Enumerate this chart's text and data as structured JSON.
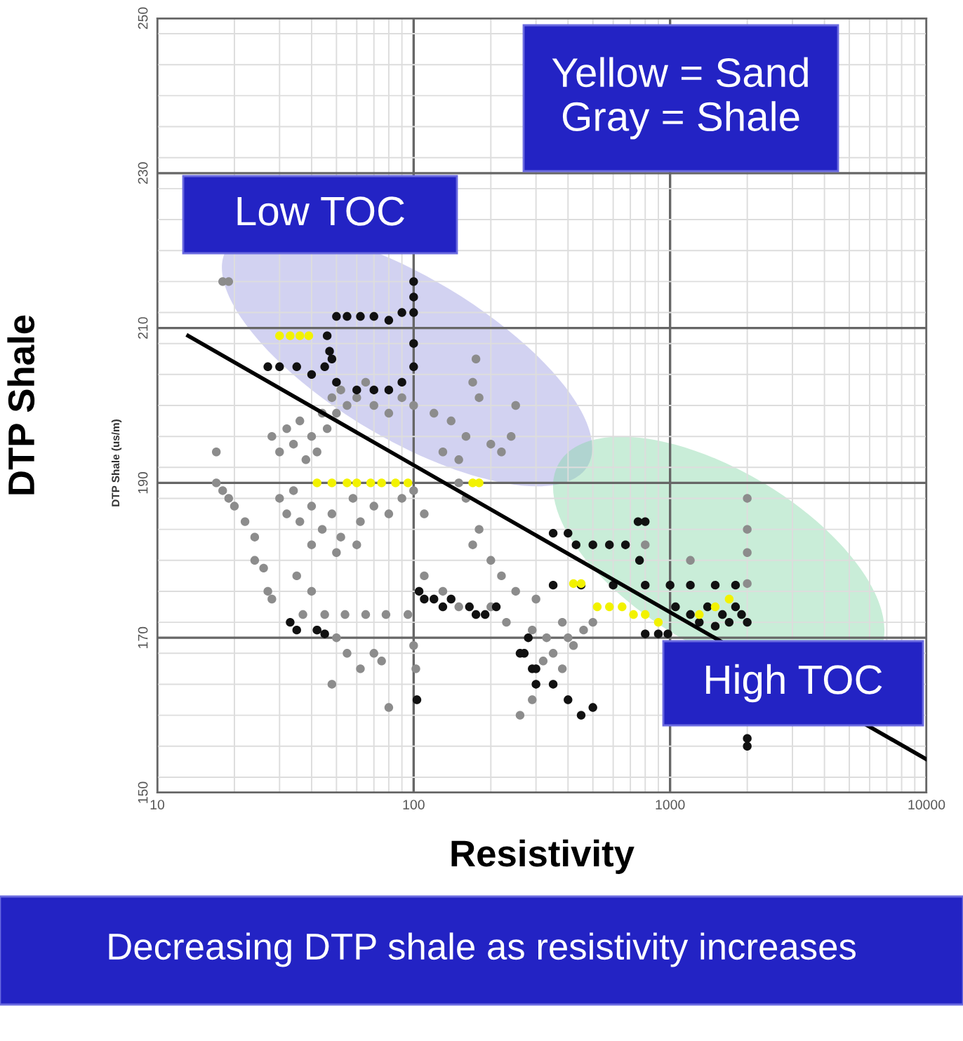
{
  "chart_data": {
    "type": "scatter",
    "xlabel": "Resistivity",
    "ylabel": "DTP Shale",
    "log": "x",
    "grid": true,
    "marker": "circle",
    "xlim": [
      10,
      10000
    ],
    "xticks": [
      10,
      100,
      1000,
      10000
    ],
    "ylim": [
      150,
      250
    ],
    "yticks": [
      150,
      170,
      190,
      210,
      230,
      250
    ],
    "annotations": [
      "Yellow = Sand\nGray = Shale",
      "Low TOC",
      "High TOC",
      "DTP Shale (us/m)",
      "Decreasing DTP shale as resistivity increases"
    ],
    "series": [
      {
        "color": "#8c8c8c",
        "x": [
          18,
          19,
          17,
          17,
          18,
          19,
          20,
          22,
          24,
          24,
          26,
          27,
          28,
          28,
          30,
          32,
          34,
          36,
          38,
          40,
          42,
          44,
          46,
          48,
          50,
          52,
          55,
          60,
          65,
          70,
          80,
          90,
          100,
          120,
          140,
          160,
          170,
          175,
          180,
          200,
          220,
          240,
          250,
          150,
          130,
          30,
          32,
          34,
          36,
          40,
          44,
          48,
          52,
          58,
          62,
          70,
          80,
          90,
          100,
          110,
          60,
          50,
          40,
          35,
          37,
          45,
          54,
          65,
          78,
          95,
          40,
          42,
          50,
          55,
          62,
          70,
          75,
          48,
          80,
          100,
          102,
          150,
          160,
          180,
          200,
          220,
          250,
          300,
          170,
          110,
          130,
          150,
          200,
          230,
          290,
          330,
          380,
          420,
          460,
          500,
          350,
          400,
          380,
          320,
          290,
          2000,
          2000,
          2000,
          2000,
          1200,
          800,
          260
        ],
        "values": [
          216,
          216,
          194,
          190,
          189,
          188,
          187,
          185,
          183,
          180,
          179,
          176,
          175,
          196,
          194,
          197,
          195,
          198,
          193,
          196,
          194,
          199,
          197,
          201,
          199,
          202,
          200,
          201,
          203,
          200,
          199,
          201,
          200,
          199,
          198,
          196,
          203,
          206,
          201,
          195,
          194,
          196,
          200,
          193,
          194,
          188,
          186,
          189,
          185,
          187,
          184,
          186,
          183,
          188,
          185,
          187,
          186,
          188,
          189,
          186,
          182,
          181,
          182,
          178,
          173,
          173,
          173,
          173,
          173,
          173,
          176,
          171,
          170,
          168,
          166,
          168,
          167,
          164,
          161,
          169,
          166,
          190,
          188,
          184,
          180,
          178,
          176,
          175,
          182,
          178,
          176,
          174,
          174,
          172,
          171,
          170,
          172,
          169,
          171,
          172,
          168,
          170,
          166,
          167,
          162,
          188,
          184,
          181,
          177,
          180,
          182,
          160
        ]
      },
      {
        "color": "#111111",
        "x": [
          50,
          55,
          62,
          70,
          80,
          90,
          100,
          100,
          100,
          100,
          100,
          27,
          30,
          35,
          40,
          45,
          48,
          50,
          60,
          70,
          80,
          90,
          46,
          47,
          33,
          35,
          42,
          45,
          105,
          110,
          120,
          130,
          140,
          165,
          175,
          190,
          210,
          103,
          270,
          290,
          300,
          280,
          750,
          800,
          350,
          400,
          430,
          500,
          580,
          670,
          350,
          450,
          600,
          800,
          1000,
          1200,
          1500,
          1800,
          760,
          1050,
          1200,
          1300,
          1400,
          1500,
          1600,
          1700,
          1800,
          1900,
          2000,
          2000,
          2000,
          260,
          300,
          350,
          400,
          450,
          500,
          800,
          900,
          980
        ],
        "values": [
          211.5,
          211.5,
          211.5,
          211.5,
          211,
          212,
          212,
          214,
          216,
          208,
          205,
          205,
          205,
          205,
          204,
          205,
          206,
          203,
          202,
          202,
          202,
          203,
          209,
          207,
          172,
          171,
          171,
          170.5,
          176,
          175,
          175,
          174,
          175,
          174,
          173,
          173,
          174,
          162,
          168,
          166,
          164,
          170,
          185,
          185,
          183.5,
          183.5,
          182,
          182,
          182,
          182,
          176.8,
          176.8,
          176.8,
          176.8,
          176.8,
          176.8,
          176.8,
          176.8,
          180,
          174,
          173,
          172,
          174,
          171.5,
          173,
          172,
          174,
          173,
          172,
          157,
          156,
          168,
          166,
          164,
          162,
          160,
          161,
          170.5,
          170.5,
          170.5
        ]
      },
      {
        "color": "#f2f200",
        "x": [
          30,
          33,
          36,
          39,
          42,
          48,
          55,
          60,
          68,
          75,
          85,
          95,
          170,
          180,
          420,
          450,
          520,
          580,
          650,
          720,
          800,
          900,
          1300,
          1500,
          1700
        ],
        "values": [
          209,
          209,
          209,
          209,
          190,
          190,
          190,
          190,
          190,
          190,
          190,
          190,
          190,
          190,
          177,
          177,
          174,
          174,
          174,
          173,
          173,
          172,
          173,
          174,
          175
        ]
      },
      {
        "type": "line",
        "marker": "none",
        "color": "#000000",
        "x": [
          13.2,
          10000
        ],
        "values": [
          209,
          154.3
        ]
      }
    ]
  }
}
